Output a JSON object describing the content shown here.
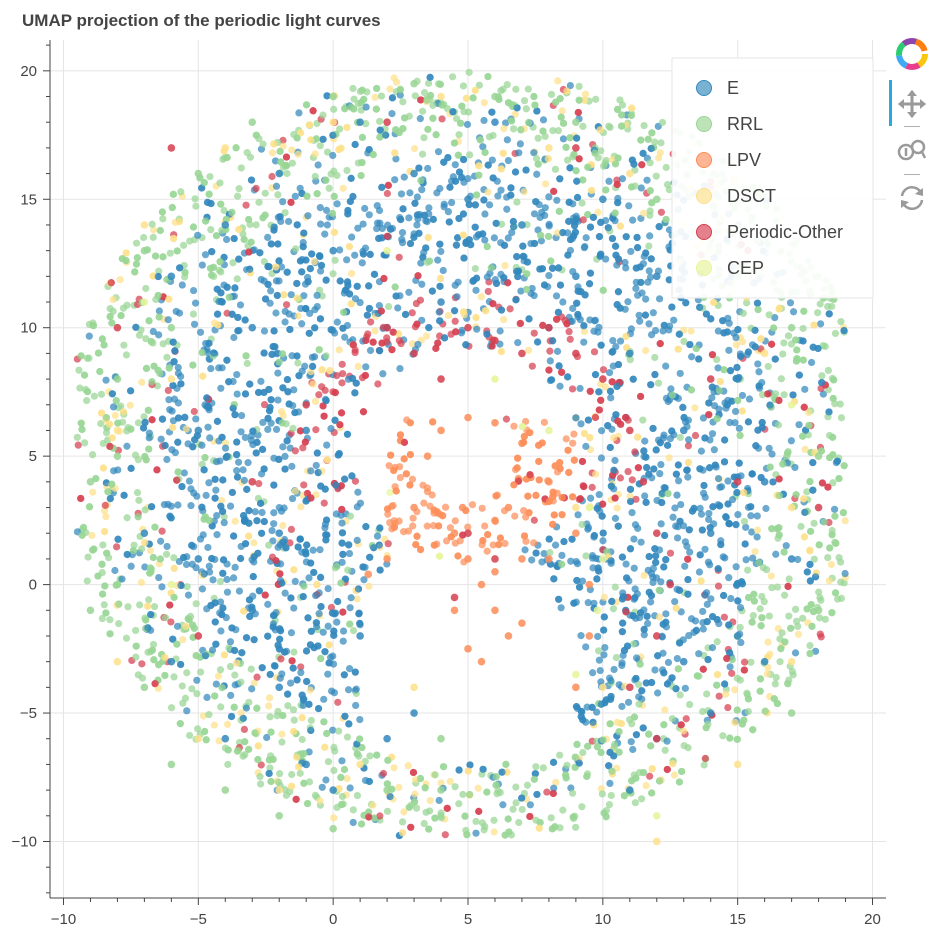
{
  "chart_data": {
    "type": "scatter",
    "title": "UMAP projection of the periodic light curves",
    "xlabel": "",
    "ylabel": "",
    "xlim": [
      -10.5,
      20.5
    ],
    "ylim": [
      -12.2,
      21.2
    ],
    "x_ticks": [
      -10,
      -5,
      0,
      5,
      10,
      15,
      20
    ],
    "y_ticks": [
      -10,
      -5,
      0,
      5,
      10,
      15,
      20
    ],
    "x_tick_labels": [
      "−10",
      "−5",
      "0",
      "5",
      "10",
      "15",
      "20"
    ],
    "y_tick_labels": [
      "−10",
      "−5",
      "0",
      "5",
      "10",
      "15",
      "20"
    ],
    "grid": true,
    "legend_position": "top-right",
    "series": [
      {
        "name": "E",
        "color": "#3288bd",
        "points": [
          [
            -7,
            2
          ],
          [
            -6,
            -3
          ],
          [
            -5,
            6
          ],
          [
            -4,
            -6
          ],
          [
            -3,
            10
          ],
          [
            -2,
            2
          ],
          [
            -2,
            -4
          ],
          [
            -1,
            6
          ],
          [
            0,
            13
          ],
          [
            1,
            -2
          ],
          [
            2,
            10
          ],
          [
            3,
            16
          ],
          [
            -1,
            -7
          ],
          [
            0,
            -8
          ],
          [
            5,
            15
          ],
          [
            7,
            14
          ],
          [
            9,
            12
          ],
          [
            11,
            9
          ],
          [
            13,
            6
          ],
          [
            14,
            2
          ],
          [
            15,
            -2
          ],
          [
            13,
            -3
          ],
          [
            12,
            -6
          ],
          [
            11,
            -8
          ],
          [
            15,
            8
          ],
          [
            16,
            4
          ],
          [
            10,
            15
          ],
          [
            12,
            12
          ],
          [
            -4,
            14
          ],
          [
            -6,
            12
          ],
          [
            2,
            -6
          ],
          [
            3,
            -5
          ],
          [
            -3,
            -1
          ],
          [
            -5,
            1
          ],
          [
            4,
            11
          ],
          [
            8,
            10
          ],
          [
            14,
            -5
          ],
          [
            17,
            1
          ],
          [
            16,
            -3
          ],
          [
            1,
            18
          ],
          [
            6,
            18
          ],
          [
            -2,
            16
          ]
        ]
      },
      {
        "name": "RRL",
        "color": "#99d594",
        "points": [
          [
            -9,
            4
          ],
          [
            -8,
            8
          ],
          [
            -8,
            0
          ],
          [
            -7,
            -4
          ],
          [
            -6,
            -7
          ],
          [
            -4,
            -8
          ],
          [
            -2,
            -9
          ],
          [
            0,
            -9.5
          ],
          [
            2,
            -8
          ],
          [
            4,
            -8
          ],
          [
            -7,
            13
          ],
          [
            -5,
            16
          ],
          [
            -3,
            18
          ],
          [
            0,
            19
          ],
          [
            3,
            19.5
          ],
          [
            6,
            19
          ],
          [
            9,
            18
          ],
          [
            12,
            15
          ],
          [
            17,
            10
          ],
          [
            18,
            5
          ],
          [
            18,
            -1
          ],
          [
            17,
            -5
          ],
          [
            -9,
            -1
          ],
          [
            -6,
            10
          ],
          [
            -8,
            5
          ],
          [
            15,
            12
          ],
          [
            4,
            -6
          ]
        ]
      },
      {
        "name": "LPV",
        "color": "#fc8d59",
        "points": [
          [
            1.3,
            0.4
          ],
          [
            2,
            1
          ],
          [
            3,
            3
          ],
          [
            3.5,
            5
          ],
          [
            4,
            6
          ],
          [
            5,
            6.5
          ],
          [
            6,
            6.3
          ],
          [
            7,
            5.5
          ],
          [
            8,
            4
          ],
          [
            9,
            2
          ],
          [
            9.5,
            0
          ],
          [
            9.5,
            -2
          ],
          [
            9,
            -4
          ],
          [
            4.5,
            2
          ],
          [
            5,
            1
          ],
          [
            5.5,
            0
          ],
          [
            6,
            -1
          ],
          [
            6.5,
            -2
          ],
          [
            5,
            -2.5
          ],
          [
            4.5,
            -1
          ],
          [
            7,
            1
          ],
          [
            6,
            2.5
          ],
          [
            5.5,
            -3
          ],
          [
            7,
            -1.5
          ],
          [
            6,
            0.5
          ],
          [
            4.8,
            3
          ],
          [
            6.5,
            3
          ],
          [
            8,
            1
          ]
        ]
      },
      {
        "name": "DSCT",
        "color": "#fee08b",
        "points": [
          [
            -8,
            6
          ],
          [
            -7,
            14
          ],
          [
            -4,
            17
          ],
          [
            0,
            18
          ],
          [
            4,
            19
          ],
          [
            8,
            17
          ],
          [
            11,
            16
          ],
          [
            16,
            9
          ],
          [
            17,
            3
          ],
          [
            17,
            -3
          ],
          [
            15,
            -7
          ],
          [
            12,
            -10
          ],
          [
            -8,
            -3
          ],
          [
            -5,
            -6
          ],
          [
            -2,
            -8
          ],
          [
            1,
            -7
          ],
          [
            3,
            -4
          ],
          [
            10,
            -4
          ],
          [
            9,
            3
          ],
          [
            -6,
            8
          ]
        ]
      },
      {
        "name": "Periodic-Other",
        "color": "#d53e4f",
        "points": [
          [
            5,
            10
          ],
          [
            6,
            9.5
          ],
          [
            7,
            9
          ],
          [
            8,
            10
          ],
          [
            9,
            9
          ],
          [
            10,
            8
          ],
          [
            11,
            6
          ],
          [
            11.5,
            4
          ],
          [
            12,
            2
          ],
          [
            12.5,
            0
          ],
          [
            12,
            -2
          ],
          [
            11,
            -4
          ],
          [
            4,
            8
          ],
          [
            3,
            9
          ],
          [
            2,
            10
          ],
          [
            -1,
            7
          ],
          [
            -3,
            4
          ],
          [
            -5,
            -2
          ],
          [
            -8,
            10
          ],
          [
            -6,
            17
          ],
          [
            5,
            2
          ],
          [
            6,
            1
          ],
          [
            4.5,
            -0.5
          ],
          [
            12,
            -6
          ],
          [
            15,
            4
          ],
          [
            18,
            3
          ],
          [
            14,
            8
          ],
          [
            2,
            18
          ],
          [
            9,
            17
          ]
        ]
      },
      {
        "name": "CEP",
        "color": "#e6f598",
        "points": [
          [
            9.5,
            3
          ],
          [
            10,
            1
          ],
          [
            9.8,
            -1
          ],
          [
            9,
            -3.5
          ],
          [
            8,
            6
          ],
          [
            6,
            8
          ],
          [
            -6,
            0
          ],
          [
            12,
            -9
          ],
          [
            17,
            7
          ],
          [
            -7,
            11
          ],
          [
            2,
            13
          ],
          [
            13,
            14
          ]
        ]
      }
    ]
  }
}
